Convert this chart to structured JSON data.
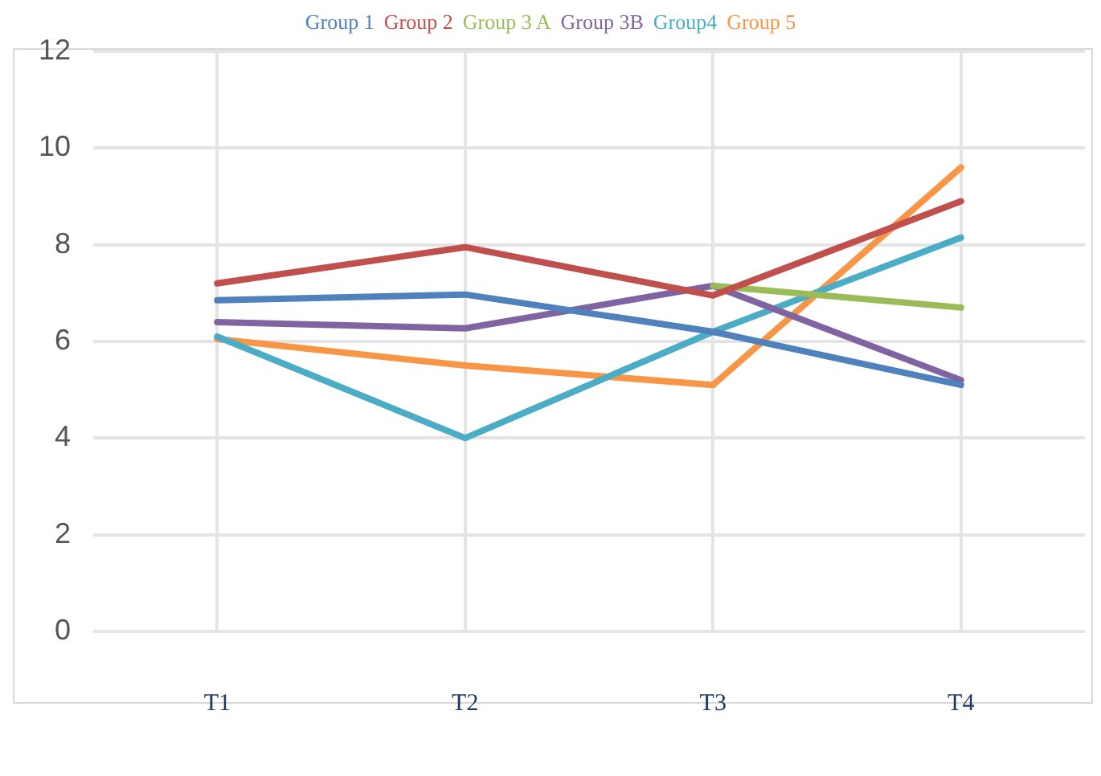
{
  "chart_data": {
    "type": "line",
    "categories": [
      "T1",
      "T2",
      "T3",
      "T4"
    ],
    "series": [
      {
        "name": "Group 1",
        "color": "#4f81bd",
        "values": [
          6.85,
          6.97,
          6.2,
          5.1
        ]
      },
      {
        "name": "Group 2",
        "color": "#c0504d",
        "values": [
          7.2,
          7.95,
          6.95,
          8.9
        ]
      },
      {
        "name": "Group 3 A",
        "color": "#9bbb59",
        "values": [
          null,
          null,
          7.15,
          6.7
        ]
      },
      {
        "name": "Group 3B",
        "color": "#8064a2",
        "values": [
          6.4,
          6.27,
          7.15,
          5.2
        ]
      },
      {
        "name": "Group4",
        "color": "#4bacc6",
        "values": [
          6.1,
          4.0,
          6.2,
          8.15
        ]
      },
      {
        "name": "Group 5",
        "color": "#f79646",
        "values": [
          6.05,
          5.5,
          5.1,
          9.6
        ]
      }
    ],
    "ylim": [
      0,
      12
    ],
    "yticks": [
      0,
      2,
      4,
      6,
      8,
      10,
      12
    ],
    "grid": true,
    "legend": "top",
    "marker": "none",
    "line_style": "solid"
  }
}
